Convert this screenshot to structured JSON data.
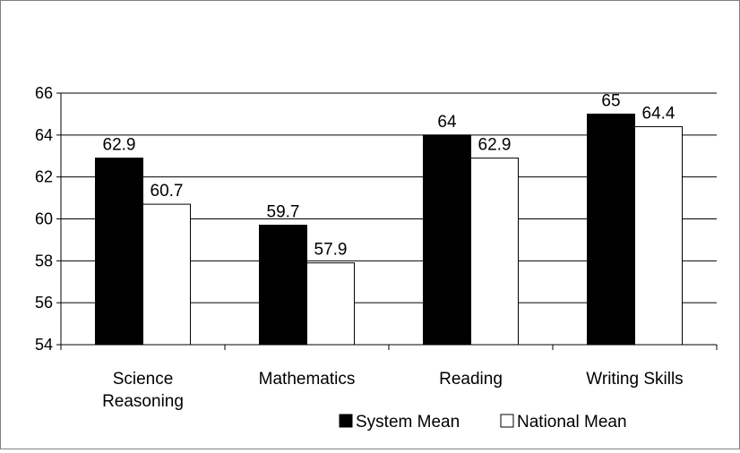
{
  "chart_data": {
    "type": "bar",
    "categories": [
      [
        "Science",
        "Reasoning"
      ],
      [
        "Mathematics"
      ],
      [
        "Reading"
      ],
      [
        "Writing Skills"
      ]
    ],
    "series": [
      {
        "name": "System Mean",
        "values": [
          62.9,
          59.7,
          64,
          65
        ],
        "color": "#000000"
      },
      {
        "name": "National Mean",
        "values": [
          60.7,
          57.9,
          62.9,
          64.4
        ],
        "color": "#ffffff"
      }
    ],
    "data_labels": {
      "System Mean": [
        "62.9",
        "59.7",
        "64",
        "65"
      ],
      "National Mean": [
        "60.7",
        "57.9",
        "62.9",
        "64.4"
      ]
    },
    "yticks": [
      "54",
      "56",
      "58",
      "60",
      "62",
      "64",
      "66"
    ],
    "ylim": [
      54,
      66
    ],
    "grid": true,
    "legend_position": "bottom-right"
  }
}
